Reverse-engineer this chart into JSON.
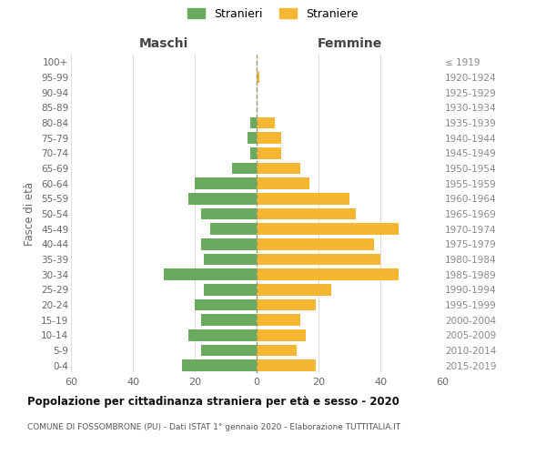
{
  "age_groups": [
    "0-4",
    "5-9",
    "10-14",
    "15-19",
    "20-24",
    "25-29",
    "30-34",
    "35-39",
    "40-44",
    "45-49",
    "50-54",
    "55-59",
    "60-64",
    "65-69",
    "70-74",
    "75-79",
    "80-84",
    "85-89",
    "90-94",
    "95-99",
    "100+"
  ],
  "birth_years": [
    "2015-2019",
    "2010-2014",
    "2005-2009",
    "2000-2004",
    "1995-1999",
    "1990-1994",
    "1985-1989",
    "1980-1984",
    "1975-1979",
    "1970-1974",
    "1965-1969",
    "1960-1964",
    "1955-1959",
    "1950-1954",
    "1945-1949",
    "1940-1944",
    "1935-1939",
    "1930-1934",
    "1925-1929",
    "1920-1924",
    "≤ 1919"
  ],
  "maschi": [
    24,
    18,
    22,
    18,
    20,
    17,
    30,
    17,
    18,
    15,
    18,
    22,
    20,
    8,
    2,
    3,
    2,
    0,
    0,
    0,
    0
  ],
  "femmine": [
    19,
    13,
    16,
    14,
    19,
    24,
    46,
    40,
    38,
    46,
    32,
    30,
    17,
    14,
    8,
    8,
    6,
    0,
    0,
    1,
    0
  ],
  "male_color": "#6aaa5e",
  "female_color": "#f5b731",
  "title": "Popolazione per cittadinanza straniera per età e sesso - 2020",
  "subtitle": "COMUNE DI FOSSOMBRONE (PU) - Dati ISTAT 1° gennaio 2020 - Elaborazione TUTTITALIA.IT",
  "xlabel_left": "Maschi",
  "xlabel_right": "Femmine",
  "ylabel_left": "Fasce di età",
  "legend_male": "Stranieri",
  "legend_female": "Straniere",
  "xlim": 60,
  "background_color": "#ffffff",
  "grid_color": "#dddddd"
}
